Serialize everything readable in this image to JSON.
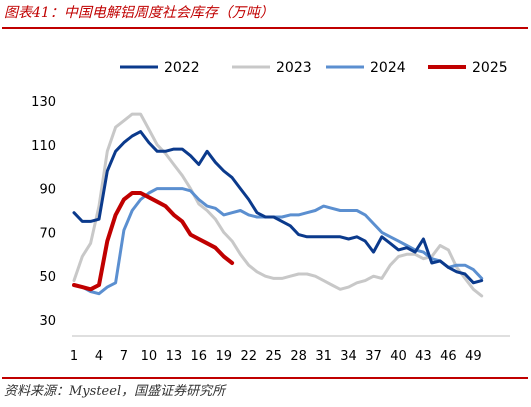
{
  "header": {
    "title": "图表41：中国电解铝周度社会库存（万吨）"
  },
  "footer": {
    "source": "资料来源：Mysteel，国盛证券研究所"
  },
  "colors": {
    "accent": "#c00000"
  },
  "chart_data": {
    "type": "line",
    "title": "图表41：中国电解铝周度社会库存（万吨）",
    "xlabel": "",
    "ylabel": "",
    "xlim": [
      1,
      51
    ],
    "ylim": [
      30,
      135
    ],
    "x_ticks": [
      1,
      4,
      7,
      10,
      13,
      16,
      19,
      22,
      25,
      28,
      31,
      34,
      37,
      40,
      43,
      46,
      49
    ],
    "y_ticks": [
      30,
      50,
      70,
      90,
      110,
      130
    ],
    "grid": false,
    "legend_position": "top",
    "series": [
      {
        "name": "2022",
        "color": "#0b3a8c",
        "width": 3,
        "x": [
          1,
          2,
          3,
          4,
          5,
          6,
          7,
          8,
          9,
          10,
          11,
          12,
          13,
          14,
          15,
          16,
          17,
          18,
          19,
          20,
          21,
          22,
          23,
          24,
          25,
          26,
          27,
          28,
          29,
          30,
          31,
          32,
          33,
          34,
          35,
          36,
          37,
          38,
          39,
          40,
          41,
          42,
          43,
          44,
          45,
          46,
          47,
          48,
          49,
          50
        ],
        "values": [
          79,
          75,
          75,
          76,
          98,
          107,
          111,
          114,
          116,
          111,
          107,
          107,
          108,
          108,
          105,
          101,
          107,
          102,
          98,
          95,
          90,
          85,
          79,
          77,
          77,
          75,
          73,
          69,
          68,
          68,
          68,
          68,
          68,
          67,
          68,
          66,
          61,
          68,
          65,
          62,
          63,
          61,
          67,
          56,
          57,
          54,
          52,
          51,
          47,
          48
        ]
      },
      {
        "name": "2023",
        "color": "#c8c8c8",
        "width": 3,
        "x": [
          1,
          2,
          3,
          4,
          5,
          6,
          7,
          8,
          9,
          10,
          11,
          12,
          13,
          14,
          15,
          16,
          17,
          18,
          19,
          20,
          21,
          22,
          23,
          24,
          25,
          26,
          27,
          28,
          29,
          30,
          31,
          32,
          33,
          34,
          35,
          36,
          37,
          38,
          39,
          40,
          41,
          42,
          43,
          44,
          45,
          46,
          47,
          48,
          49,
          50
        ],
        "values": [
          48,
          59,
          65,
          82,
          107,
          118,
          121,
          124,
          124,
          117,
          110,
          106,
          101,
          96,
          90,
          83,
          80,
          76,
          70,
          66,
          60,
          55,
          52,
          50,
          49,
          49,
          50,
          51,
          51,
          50,
          48,
          46,
          44,
          45,
          47,
          48,
          50,
          49,
          55,
          59,
          60,
          60,
          58,
          59,
          64,
          62,
          54,
          49,
          44,
          41
        ]
      },
      {
        "name": "2024",
        "color": "#5b8fd0",
        "width": 3,
        "x": [
          1,
          2,
          3,
          4,
          5,
          6,
          7,
          8,
          9,
          10,
          11,
          12,
          13,
          14,
          15,
          16,
          17,
          18,
          19,
          20,
          21,
          22,
          23,
          24,
          25,
          26,
          27,
          28,
          29,
          30,
          31,
          32,
          33,
          34,
          35,
          36,
          37,
          38,
          39,
          40,
          41,
          42,
          43,
          44,
          45,
          46,
          47,
          48,
          49,
          50
        ],
        "values": [
          46,
          45,
          43,
          42,
          45,
          47,
          71,
          80,
          85,
          88,
          90,
          90,
          90,
          90,
          89,
          85,
          82,
          81,
          78,
          79,
          80,
          78,
          77,
          77,
          77,
          77,
          78,
          78,
          79,
          80,
          82,
          81,
          80,
          80,
          80,
          78,
          74,
          70,
          68,
          66,
          64,
          62,
          61,
          58,
          57,
          54,
          55,
          55,
          53,
          49
        ]
      },
      {
        "name": "2025",
        "color": "#c00000",
        "width": 4,
        "x": [
          1,
          2,
          3,
          4,
          5,
          6,
          7,
          8,
          9,
          10,
          11,
          12,
          13,
          14,
          15,
          16,
          17,
          18,
          19,
          20
        ],
        "values": [
          46,
          45,
          44,
          46,
          66,
          78,
          85,
          88,
          88,
          86,
          84,
          82,
          78,
          75,
          69,
          67,
          65,
          63,
          59,
          56
        ]
      }
    ]
  }
}
